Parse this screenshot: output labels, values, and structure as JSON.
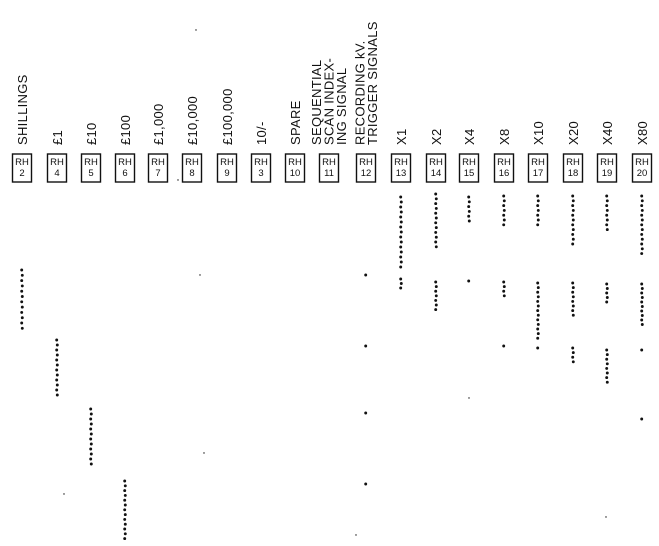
{
  "columns": [
    {
      "id": "c1",
      "lines": [
        "SHILLINGS"
      ],
      "rh": [
        "RH",
        "2"
      ]
    },
    {
      "id": "c2",
      "lines": [
        "£1"
      ],
      "rh": [
        "RH",
        "4"
      ]
    },
    {
      "id": "c3",
      "lines": [
        "£10"
      ],
      "rh": [
        "RH",
        "5"
      ]
    },
    {
      "id": "c4",
      "lines": [
        "£100"
      ],
      "rh": [
        "RH",
        "6"
      ]
    },
    {
      "id": "c5",
      "lines": [
        "£1,000"
      ],
      "rh": [
        "RH",
        "7"
      ]
    },
    {
      "id": "c6",
      "lines": [
        "£10,000"
      ],
      "rh": [
        "RH",
        "8"
      ]
    },
    {
      "id": "c7",
      "lines": [
        "£100,000"
      ],
      "rh": [
        "RH",
        "9"
      ]
    },
    {
      "id": "c8",
      "lines": [
        "10/-"
      ],
      "rh": [
        "RH",
        "3"
      ]
    },
    {
      "id": "c9",
      "lines": [
        "SPARE"
      ],
      "rh": [
        "RH",
        "10"
      ]
    },
    {
      "id": "c10",
      "lines": [
        "SEQUENTIAL",
        "SCAN INDEX-",
        "ING SIGNAL"
      ],
      "rh": [
        "RH",
        "11"
      ]
    },
    {
      "id": "c11",
      "lines": [
        "RECORDING kV.",
        "TRIGGER SIGNALS"
      ],
      "rh": [
        "RH",
        "12"
      ]
    },
    {
      "id": "c12",
      "lines": [
        "X1"
      ],
      "rh": [
        "RH",
        "13"
      ]
    },
    {
      "id": "c13",
      "lines": [
        "X2"
      ],
      "rh": [
        "RH",
        "14"
      ]
    },
    {
      "id": "c14",
      "lines": [
        "X4"
      ],
      "rh": [
        "RH",
        "15"
      ]
    },
    {
      "id": "c15",
      "lines": [
        "X8"
      ],
      "rh": [
        "RH",
        "16"
      ]
    },
    {
      "id": "c16",
      "lines": [
        "X10"
      ],
      "rh": [
        "RH",
        "17"
      ]
    },
    {
      "id": "c17",
      "lines": [
        "X20"
      ],
      "rh": [
        "RH",
        "18"
      ]
    },
    {
      "id": "c18",
      "lines": [
        "X40"
      ],
      "rh": [
        "RH",
        "19"
      ]
    },
    {
      "id": "c19",
      "lines": [
        "X80"
      ],
      "rh": [
        "RH",
        "20"
      ]
    }
  ]
}
